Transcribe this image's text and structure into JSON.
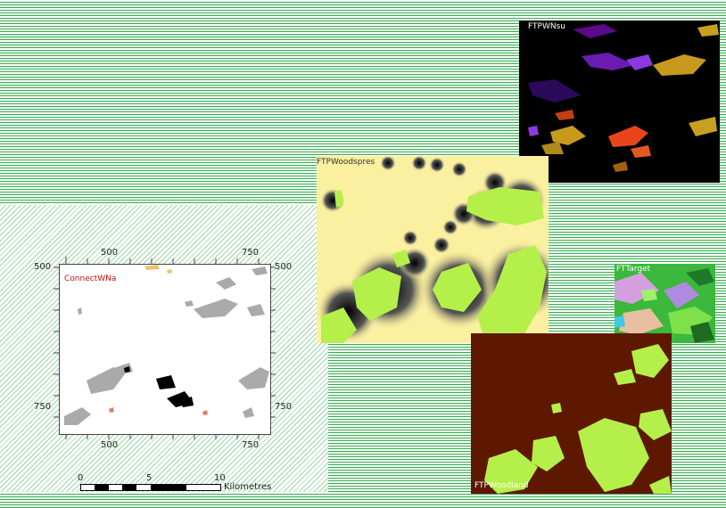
{
  "panels": {
    "ftpwnsu": {
      "title": "FTPWNsu"
    },
    "ftpwoodspres": {
      "title": "FTPWoodspres"
    },
    "fttarget": {
      "title": "FTTarget"
    },
    "ftpwoodland": {
      "title": "FTPWoodland"
    },
    "connectwna": {
      "title": "ConnectWNa"
    }
  },
  "axes": {
    "x_top": [
      "500",
      "750"
    ],
    "x_bottom": [
      "500",
      "750"
    ],
    "y_left": [
      "500",
      "750"
    ],
    "y_right": [
      "500",
      "750"
    ]
  },
  "scale": {
    "ticks": [
      "0",
      "5",
      "10"
    ],
    "unit": "Kilometres"
  },
  "colors": {
    "background_stripes": "#2fae4a",
    "woodspres_fill": "#fbf0a0",
    "woodland_fill": "#5e1800",
    "patch_green": "#b5f04a",
    "nsu_bg": "#000000"
  }
}
